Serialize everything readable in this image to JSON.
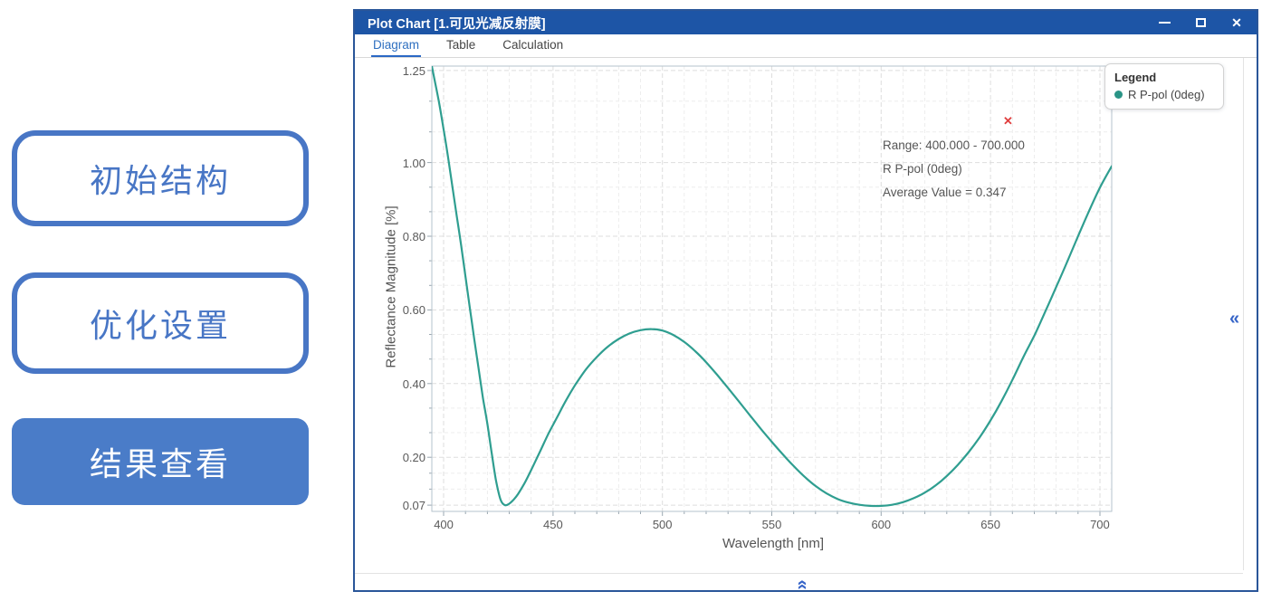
{
  "sidebar": {
    "buttons": [
      {
        "name": "initial-structure",
        "label": "初始结构",
        "variant": "outline"
      },
      {
        "name": "optimization-settings",
        "label": "优化设置",
        "variant": "outline"
      },
      {
        "name": "results-view",
        "label": "结果查看",
        "variant": "filled"
      }
    ]
  },
  "window": {
    "title": "Plot Chart [1.可见光减反射膜]",
    "controls": [
      {
        "name": "minimize"
      },
      {
        "name": "maximize"
      },
      {
        "name": "close",
        "glyph": "✕"
      }
    ],
    "tabs": [
      {
        "label": "Diagram",
        "active": true
      },
      {
        "label": "Table",
        "active": false
      },
      {
        "label": "Calculation",
        "active": false
      }
    ],
    "collapse_left_glyph": "«",
    "expand_up_glyph": "«"
  },
  "chart_data": {
    "type": "line",
    "title": "",
    "xlabel": "Wavelength [nm]",
    "ylabel": "Reflectance Magnitude [%]",
    "x_ticks": [
      400,
      450,
      500,
      550,
      600,
      650,
      700
    ],
    "y_ticks": [
      1.25,
      1.0,
      0.8,
      0.6,
      0.4,
      0.2,
      0.07
    ],
    "y_tick_labels": [
      "1.25",
      "1.00",
      "0.80",
      "0.60",
      "0.40",
      "0.20",
      "0.07"
    ],
    "x_range": [
      394.6,
      705.4
    ],
    "y_range": [
      0.053,
      1.262
    ],
    "grid": {
      "major": true,
      "minor": true,
      "style": "dashed"
    },
    "legend": {
      "title": "Legend",
      "position": "top-right",
      "entries": [
        {
          "label": "R P-pol (0deg)",
          "color": "#2a9486"
        }
      ]
    },
    "annotation": {
      "lines": [
        "Range: 400.000 - 700.000",
        "R P-pol (0deg)",
        "Average Value = 0.347"
      ],
      "marker_glyph": "✕",
      "marker_color": "#e03e3e"
    },
    "series": [
      {
        "name": "R P-pol (0deg)",
        "color": "#2f9e90",
        "points": [
          [
            394.6,
            1.262
          ],
          [
            396,
            1.22
          ],
          [
            398,
            1.16
          ],
          [
            400,
            1.09
          ],
          [
            402,
            1.015
          ],
          [
            404,
            0.935
          ],
          [
            406,
            0.855
          ],
          [
            408,
            0.775
          ],
          [
            410,
            0.69
          ],
          [
            412,
            0.605
          ],
          [
            414,
            0.52
          ],
          [
            416,
            0.44
          ],
          [
            418,
            0.36
          ],
          [
            420,
            0.29
          ],
          [
            422,
            0.21
          ],
          [
            424,
            0.135
          ],
          [
            426,
            0.085
          ],
          [
            428,
            0.07
          ],
          [
            430,
            0.074
          ],
          [
            432,
            0.085
          ],
          [
            434,
            0.1
          ],
          [
            437,
            0.13
          ],
          [
            440,
            0.165
          ],
          [
            444,
            0.215
          ],
          [
            448,
            0.265
          ],
          [
            452,
            0.31
          ],
          [
            456,
            0.355
          ],
          [
            460,
            0.395
          ],
          [
            465,
            0.438
          ],
          [
            470,
            0.472
          ],
          [
            475,
            0.5
          ],
          [
            480,
            0.521
          ],
          [
            485,
            0.536
          ],
          [
            490,
            0.545
          ],
          [
            495,
            0.548
          ],
          [
            500,
            0.544
          ],
          [
            505,
            0.532
          ],
          [
            510,
            0.513
          ],
          [
            515,
            0.488
          ],
          [
            520,
            0.458
          ],
          [
            525,
            0.424
          ],
          [
            530,
            0.388
          ],
          [
            535,
            0.351
          ],
          [
            540,
            0.314
          ],
          [
            545,
            0.277
          ],
          [
            550,
            0.242
          ],
          [
            555,
            0.208
          ],
          [
            560,
            0.176
          ],
          [
            565,
            0.147
          ],
          [
            570,
            0.122
          ],
          [
            575,
            0.102
          ],
          [
            580,
            0.087
          ],
          [
            585,
            0.077
          ],
          [
            590,
            0.071
          ],
          [
            595,
            0.068
          ],
          [
            600,
            0.068
          ],
          [
            605,
            0.071
          ],
          [
            610,
            0.078
          ],
          [
            615,
            0.089
          ],
          [
            620,
            0.104
          ],
          [
            625,
            0.124
          ],
          [
            630,
            0.149
          ],
          [
            635,
            0.179
          ],
          [
            640,
            0.214
          ],
          [
            645,
            0.254
          ],
          [
            650,
            0.3
          ],
          [
            655,
            0.352
          ],
          [
            660,
            0.41
          ],
          [
            665,
            0.472
          ],
          [
            670,
            0.53
          ],
          [
            675,
            0.595
          ],
          [
            680,
            0.662
          ],
          [
            685,
            0.73
          ],
          [
            690,
            0.8
          ],
          [
            695,
            0.868
          ],
          [
            700,
            0.932
          ],
          [
            705.4,
            0.99
          ]
        ]
      }
    ]
  },
  "colors": {
    "titlebar": "#1d55a6",
    "window_border": "#2a5699",
    "accent_blue": "#4876c5",
    "tab_active": "#2e6fc0",
    "curve": "#2f9e90",
    "grid_major": "#dedede",
    "grid_minor": "#ededed",
    "axis": "#9aa7b0",
    "plot_border": "#b6c3cc",
    "annotation_red": "#e03e3e"
  }
}
